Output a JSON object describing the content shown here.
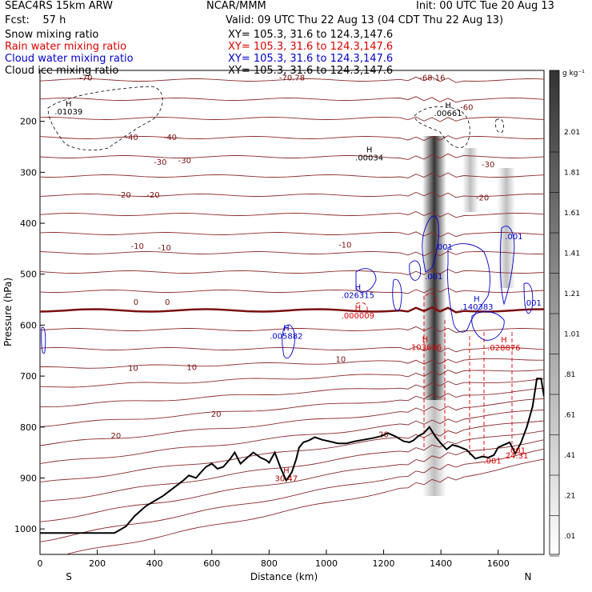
{
  "header": {
    "model": "SEAC4RS 15km ARW",
    "org": "NCAR/MMM",
    "init": "Init: 00 UTC Tue 20 Aug 13",
    "fcst": "Fcst:    57 h",
    "valid": "Valid: 09 UTC Thu 22 Aug 13 (04 CDT Thu 22 Aug 13)"
  },
  "legend": [
    {
      "label": "Snow mixing ratio",
      "xy": "XY= 105.3, 31.6 to 124.3,147.6",
      "color": "#000000"
    },
    {
      "label": "Rain water mixing ratio",
      "xy": "XY= 105.3, 31.6 to 124.3,147.6",
      "color": "#dd0000"
    },
    {
      "label": "Cloud water mixing ratio",
      "xy": "XY= 105.3, 31.6 to 124.3,147.6",
      "color": "#0000cc"
    },
    {
      "label": "Cloud ice mixing ratio",
      "xy": "XY= 105.3, 31.6 to 124.3,147.6",
      "color": "#000000"
    }
  ],
  "chart_data": {
    "type": "line",
    "xlabel": "Distance (km)",
    "ylabel": "Pressure (hPa)",
    "xlim": [
      0,
      1760
    ],
    "ylim": [
      1050,
      100
    ],
    "x_ticks": [
      0,
      200,
      400,
      600,
      800,
      1000,
      1200,
      1400,
      1600
    ],
    "y_ticks": [
      1000,
      900,
      800,
      700,
      600,
      500,
      400,
      300,
      200
    ],
    "x_end_labels": {
      "left": "S",
      "right": "N"
    },
    "colorbar": {
      "unit": "g kg⁻¹",
      "labels": [
        "2.01",
        "1.81",
        "1.61",
        "1.41",
        "1.21",
        "1.01",
        ".81",
        ".61",
        ".41",
        ".21",
        ".01"
      ]
    },
    "temperature_labels": [
      {
        "text": "-70",
        "x": 160,
        "y": 120
      },
      {
        "text": "-40",
        "x": 320,
        "y": 237
      },
      {
        "text": "-40",
        "x": 455,
        "y": 237
      },
      {
        "text": "-30",
        "x": 420,
        "y": 285
      },
      {
        "text": "-30",
        "x": 505,
        "y": 282
      },
      {
        "text": "-30",
        "x": 1565,
        "y": 290
      },
      {
        "text": "-20",
        "x": 295,
        "y": 350
      },
      {
        "text": "-20",
        "x": 395,
        "y": 350
      },
      {
        "text": "-20",
        "x": 1545,
        "y": 355
      },
      {
        "text": "-10",
        "x": 340,
        "y": 450
      },
      {
        "text": "-10",
        "x": 435,
        "y": 453
      },
      {
        "text": "-10",
        "x": 1065,
        "y": 448
      },
      {
        "text": "0",
        "x": 335,
        "y": 560
      },
      {
        "text": "0",
        "x": 445,
        "y": 560
      },
      {
        "text": "10",
        "x": 325,
        "y": 690
      },
      {
        "text": "10",
        "x": 530,
        "y": 688
      },
      {
        "text": "10",
        "x": 1050,
        "y": 672
      },
      {
        "text": "20",
        "x": 265,
        "y": 822
      },
      {
        "text": "20",
        "x": 615,
        "y": 780
      },
      {
        "text": "20",
        "x": 1200,
        "y": 820
      },
      {
        "text": "-60",
        "x": 1490,
        "y": 178
      },
      {
        "text": "-68.16",
        "x": 1370,
        "y": 120
      },
      {
        "text": "-70.78",
        "x": 880,
        "y": 120
      }
    ],
    "extrema": [
      {
        "mark": "H",
        "value": ".01039",
        "x": 100,
        "y": 185,
        "color": "#000000"
      },
      {
        "mark": "H",
        "value": ".00034",
        "x": 1150,
        "y": 275,
        "color": "#000000"
      },
      {
        "mark": "H",
        "value": ".00661",
        "x": 1425,
        "y": 188,
        "color": "#000000"
      },
      {
        "mark": "H",
        "value": ".026315",
        "x": 1110,
        "y": 545,
        "color": "#0000cc"
      },
      {
        "mark": "H",
        "value": ".000009",
        "x": 1110,
        "y": 585,
        "color": "#dd0000"
      },
      {
        "mark": "H",
        "value": ".005882",
        "x": 860,
        "y": 625,
        "color": "#0000cc"
      },
      {
        "mark": "H",
        "value": ".103636",
        "x": 1345,
        "y": 647,
        "color": "#dd0000"
      },
      {
        "mark": "H",
        "value": ".140383",
        "x": 1525,
        "y": 568,
        "color": "#0000cc"
      },
      {
        "mark": "H",
        "value": ".028876",
        "x": 1620,
        "y": 648,
        "color": "#dd0000"
      },
      {
        "mark": "",
        "value": ".001",
        "x": 1410,
        "y": 450,
        "color": "#0000cc"
      },
      {
        "mark": "",
        "value": ".001",
        "x": 1375,
        "y": 508,
        "color": "#0000cc"
      },
      {
        "mark": "",
        "value": ".001",
        "x": 1655,
        "y": 430,
        "color": "#0000cc"
      },
      {
        "mark": "",
        "value": ".001",
        "x": 1720,
        "y": 560,
        "color": "#0000cc"
      },
      {
        "mark": "",
        "value": ".001",
        "x": 1580,
        "y": 870,
        "color": "#dd0000"
      },
      {
        "mark": "",
        "value": ".001",
        "x": 1665,
        "y": 850,
        "color": "#dd0000"
      },
      {
        "mark": "",
        "value": "24.31",
        "x": 1665,
        "y": 860,
        "color": "#dd0000"
      },
      {
        "mark": "H",
        "value": "30.47",
        "x": 860,
        "y": 905,
        "color": "#aa0000"
      }
    ],
    "series": [
      {
        "name": "Terrain",
        "x": [
          0,
          260,
          300,
          330,
          370,
          400,
          430,
          470,
          500,
          520,
          545,
          560,
          580,
          600,
          620,
          640,
          665,
          680,
          700,
          720,
          745,
          770,
          790,
          800,
          820,
          840,
          860,
          880,
          895,
          905,
          920,
          940,
          960,
          985,
          1010,
          1040,
          1070,
          1100,
          1130,
          1160,
          1190,
          1215,
          1240,
          1270,
          1290,
          1305,
          1320,
          1340,
          1360,
          1380,
          1400,
          1420,
          1440,
          1460,
          1490,
          1520,
          1545,
          1565,
          1585,
          1600,
          1620,
          1640,
          1660,
          1680,
          1700,
          1720,
          1735,
          1750,
          1760
        ],
        "y": [
          1008,
          1008,
          995,
          975,
          955,
          945,
          935,
          918,
          905,
          895,
          900,
          890,
          878,
          872,
          882,
          878,
          862,
          850,
          872,
          862,
          850,
          860,
          865,
          870,
          850,
          880,
          905,
          888,
          862,
          840,
          830,
          826,
          820,
          825,
          828,
          832,
          832,
          828,
          825,
          822,
          818,
          812,
          818,
          828,
          830,
          826,
          818,
          812,
          800,
          818,
          832,
          844,
          835,
          838,
          845,
          862,
          858,
          860,
          855,
          840,
          835,
          830,
          852,
          830,
          800,
          760,
          705,
          705,
          740
        ]
      }
    ]
  }
}
